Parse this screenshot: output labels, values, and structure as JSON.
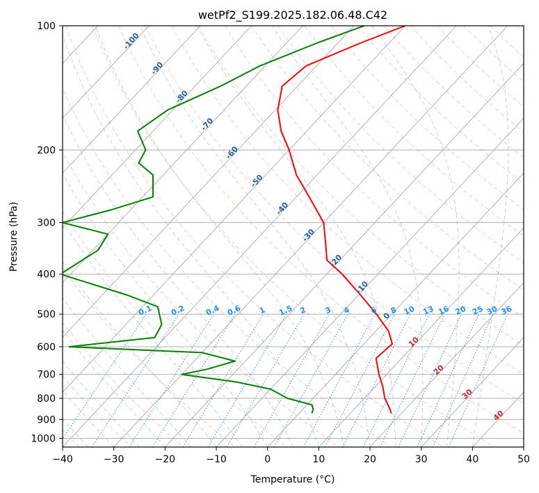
{
  "chart_data": {
    "type": "line",
    "title": "wetPf2_S199.2025.182.06.48.C42",
    "xlabel": "Temperature (°C)",
    "ylabel": "Pressure (hPa)",
    "xlim": [
      -40,
      50
    ],
    "ylim": [
      1050,
      100
    ],
    "y_scale": "log",
    "grid": true,
    "x_ticks": [
      -40,
      -30,
      -20,
      -10,
      0,
      10,
      20,
      30,
      40,
      50
    ],
    "y_ticks": [
      100,
      200,
      300,
      400,
      500,
      600,
      700,
      800,
      900,
      1000
    ],
    "series": [
      {
        "role": "temperature",
        "color": "#ff0000",
        "points": [
          {
            "p": 100,
            "t": -50.0
          },
          {
            "p": 110,
            "t": -55.5
          },
          {
            "p": 125,
            "t": -62.0
          },
          {
            "p": 140,
            "t": -63.0
          },
          {
            "p": 160,
            "t": -59.5
          },
          {
            "p": 180,
            "t": -55.0
          },
          {
            "p": 200,
            "t": -50.0
          },
          {
            "p": 230,
            "t": -44.0
          },
          {
            "p": 260,
            "t": -37.5
          },
          {
            "p": 300,
            "t": -30.0
          },
          {
            "p": 340,
            "t": -25.5
          },
          {
            "p": 370,
            "t": -22.5
          },
          {
            "p": 400,
            "t": -17.0
          },
          {
            "p": 450,
            "t": -9.5
          },
          {
            "p": 500,
            "t": -3.0
          },
          {
            "p": 550,
            "t": 2.5
          },
          {
            "p": 590,
            "t": 5.5
          },
          {
            "p": 640,
            "t": 5.0
          },
          {
            "p": 700,
            "t": 8.5
          },
          {
            "p": 750,
            "t": 11.5
          },
          {
            "p": 800,
            "t": 14.0
          },
          {
            "p": 850,
            "t": 17.0
          },
          {
            "p": 870,
            "t": 18.0
          }
        ]
      },
      {
        "role": "dewpoint",
        "color": "#008000",
        "points": [
          {
            "p": 100,
            "t": -58.0
          },
          {
            "p": 110,
            "t": -64.0
          },
          {
            "p": 125,
            "t": -71.0
          },
          {
            "p": 140,
            "t": -75.0
          },
          {
            "p": 160,
            "t": -81.0
          },
          {
            "p": 180,
            "t": -83.0
          },
          {
            "p": 200,
            "t": -78.0
          },
          {
            "p": 215,
            "t": -77.0
          },
          {
            "p": 230,
            "t": -72.0
          },
          {
            "p": 260,
            "t": -68.0
          },
          {
            "p": 280,
            "t": -74.0
          },
          {
            "p": 300,
            "t": -81.0
          },
          {
            "p": 320,
            "t": -70.0
          },
          {
            "p": 350,
            "t": -69.0
          },
          {
            "p": 400,
            "t": -72.0
          },
          {
            "p": 450,
            "t": -55.0
          },
          {
            "p": 480,
            "t": -47.0
          },
          {
            "p": 530,
            "t": -43.0
          },
          {
            "p": 570,
            "t": -42.0
          },
          {
            "p": 600,
            "t": -57.0
          },
          {
            "p": 620,
            "t": -30.0
          },
          {
            "p": 650,
            "t": -22.0
          },
          {
            "p": 680,
            "t": -26.0
          },
          {
            "p": 700,
            "t": -30.0
          },
          {
            "p": 730,
            "t": -18.0
          },
          {
            "p": 760,
            "t": -10.0
          },
          {
            "p": 800,
            "t": -5.0
          },
          {
            "p": 830,
            "t": 1.0
          },
          {
            "p": 850,
            "t": 2.0
          },
          {
            "p": 870,
            "t": 2.5
          }
        ]
      }
    ],
    "reference_lines": {
      "isotherms_color": "#a9a9a9",
      "dry_adiabats_color": "#ff6347",
      "moist_adiabats_color": "#2e8b57",
      "mixing_ratio_color": "#1e90ff",
      "mixing_ratio_labels": [
        "0.1",
        "0.2",
        "0.4",
        "0.6",
        "1",
        "1.5",
        "2",
        "3",
        "4",
        "6",
        "8",
        "10",
        "13",
        "16",
        "20",
        "25",
        "30",
        "36"
      ],
      "isotherm_labels_negative": [
        "-100",
        "-90",
        "-80",
        "-70",
        "-60",
        "-50",
        "-40",
        "-30",
        "-20",
        "-10",
        "0"
      ],
      "isotherm_labels_positive": [
        "10",
        "20",
        "30",
        "40"
      ]
    }
  }
}
